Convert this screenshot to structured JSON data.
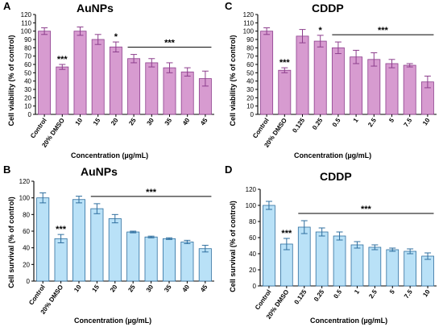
{
  "chart_data": [
    {
      "panel": "A",
      "type": "bar",
      "title": "AuNPs",
      "ylabel": "Cell viability (% of control)",
      "xlabel": "Concentration (µg/mL)",
      "ylim": [
        0,
        120
      ],
      "yticks": [
        0,
        10,
        20,
        30,
        40,
        50,
        60,
        70,
        80,
        90,
        100,
        110,
        120
      ],
      "categories": [
        "Control",
        "20% DMSO",
        "10",
        "15",
        "20",
        "25",
        "30",
        "35",
        "40",
        "45"
      ],
      "values": [
        100,
        57,
        100,
        90,
        81,
        67,
        62,
        56,
        51,
        43
      ],
      "errors": [
        4,
        3,
        5,
        6,
        6,
        5,
        5,
        6,
        5,
        9
      ],
      "annotations": [
        {
          "category": "20% DMSO",
          "text": "***"
        },
        {
          "category": "20",
          "text": "*"
        },
        {
          "from": "25",
          "to": "45",
          "text": "***"
        }
      ],
      "bar_color": "#d79bd0",
      "bar_edge": "#8d3f8d",
      "error_color": "#8d3f8d"
    },
    {
      "panel": "C",
      "type": "bar",
      "title": "CDDP",
      "ylabel": "Cell viability (% of control)",
      "xlabel": "Concentration (µg/mL)",
      "ylim": [
        0,
        120
      ],
      "yticks": [
        0,
        10,
        20,
        30,
        40,
        50,
        60,
        70,
        80,
        90,
        100,
        110,
        120
      ],
      "categories": [
        "Control",
        "20% DMSO",
        "0.125",
        "0.25",
        "0.5",
        "1",
        "2.5",
        "5",
        "7.5",
        "10"
      ],
      "values": [
        100,
        53,
        94,
        88,
        80,
        69,
        66,
        61,
        59,
        39
      ],
      "errors": [
        4,
        3,
        8,
        7,
        7,
        8,
        8,
        5,
        2,
        7
      ],
      "annotations": [
        {
          "category": "20% DMSO",
          "text": "***"
        },
        {
          "category": "0.25",
          "text": "*"
        },
        {
          "from": "0.5",
          "to": "10",
          "text": "***"
        }
      ],
      "bar_color": "#d79bd0",
      "bar_edge": "#8d3f8d",
      "error_color": "#8d3f8d"
    },
    {
      "panel": "B",
      "type": "bar",
      "title": "AuNPs",
      "ylabel": "Cell survival (% of control)",
      "xlabel": "Concentration (µg/mL)",
      "ylim": [
        0,
        120
      ],
      "yticks": [
        0,
        20,
        40,
        60,
        80,
        100,
        120
      ],
      "categories": [
        "Control",
        "20% DMSO",
        "10",
        "15",
        "20",
        "25",
        "30",
        "35",
        "40",
        "45"
      ],
      "values": [
        100,
        51,
        98,
        87,
        75,
        59,
        53,
        51,
        47,
        39
      ],
      "errors": [
        6,
        5,
        4,
        6,
        5,
        1,
        1,
        1,
        2,
        4
      ],
      "annotations": [
        {
          "category": "20% DMSO",
          "text": "***"
        },
        {
          "from": "15",
          "to": "45",
          "text": "***"
        }
      ],
      "bar_color": "#b9e1f7",
      "bar_edge": "#2f6f9f",
      "error_color": "#2f6f9f"
    },
    {
      "panel": "D",
      "type": "bar",
      "title": "CDDP",
      "ylabel": "Cell survival (% of control)",
      "xlabel": "Concentration (µg/mL)",
      "ylim": [
        0,
        120
      ],
      "yticks": [
        0,
        20,
        40,
        60,
        80,
        100,
        120
      ],
      "categories": [
        "Control",
        "20% DMSO",
        "0.125",
        "0.25",
        "0.5",
        "1",
        "2.5",
        "5",
        "7.5",
        "10"
      ],
      "values": [
        100,
        52,
        73,
        67,
        62,
        51,
        48,
        45,
        43,
        37
      ],
      "errors": [
        5,
        7,
        8,
        5,
        5,
        4,
        3,
        2,
        3,
        4
      ],
      "annotations": [
        {
          "category": "20% DMSO",
          "text": "***"
        },
        {
          "from": "0.125",
          "to": "10",
          "text": "***"
        }
      ],
      "bar_color": "#b9e1f7",
      "bar_edge": "#2f6f9f",
      "error_color": "#2f6f9f"
    }
  ]
}
